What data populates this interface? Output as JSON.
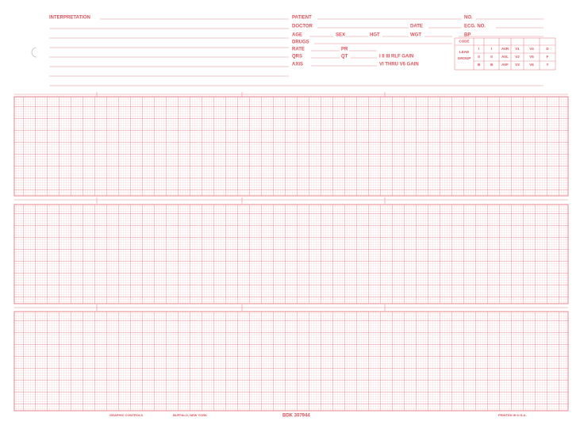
{
  "header": {
    "interpretation": "INTERPRETATION",
    "fields": {
      "patient": "PATIENT",
      "no": "NO.",
      "doctor": "DOCTOR",
      "date": "DATE",
      "ecg_no": "ECG. NO.",
      "age": "AGE",
      "sex": "SEX",
      "hgt": "HGT",
      "wgt": "WGT",
      "bp": "BP",
      "drugs": "DRUGS",
      "rate": "RATE",
      "pr": "PR",
      "qrs": "QRS",
      "qt": "QT",
      "gain_limb": "I II III RLF GAIN",
      "axis": "AXIS",
      "gain_chest": "VI THRU V6 GAIN"
    },
    "code_table": {
      "code": "CODE",
      "lead_group": [
        "LEAD",
        "GROUP"
      ],
      "rows": [
        [
          "I",
          "I",
          "AVR",
          "V1",
          "V4",
          "D"
        ],
        [
          "II",
          "II",
          "AVL",
          "V2",
          "V5",
          "F"
        ],
        [
          "III",
          "III",
          "AVF",
          "V3",
          "V6",
          "Y"
        ]
      ]
    }
  },
  "footer": {
    "maker": "GRAPHIC CONTROLS",
    "city": "BUFFALO, NEW YORK",
    "form_no": "BDK 307944",
    "printed": "PRINTED IN U.S.A."
  }
}
